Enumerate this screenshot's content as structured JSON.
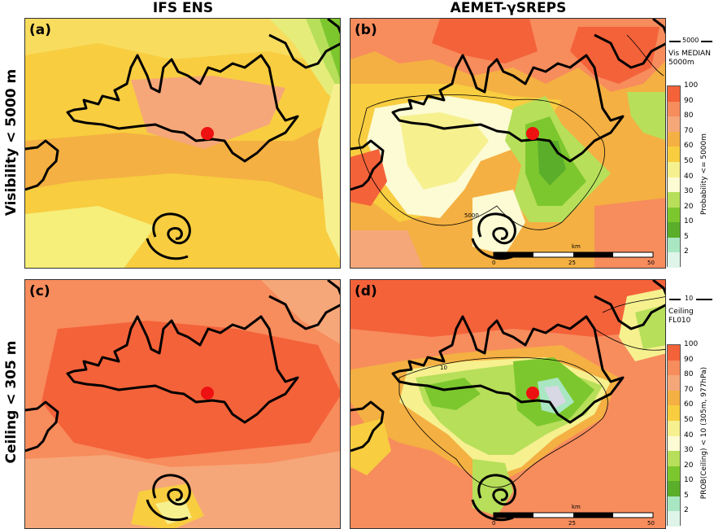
{
  "columns": [
    "IFS ENS",
    "AEMET-γSREPS"
  ],
  "rows": [
    "Visibility < 5000 m",
    "Ceiling < 305 m"
  ],
  "panels": [
    {
      "label": "(a)"
    },
    {
      "label": "(b)"
    },
    {
      "label": "(c)"
    },
    {
      "label": "(d)"
    }
  ],
  "scalebar": {
    "unit": "km",
    "ticks": [
      "0",
      "25",
      "50"
    ]
  },
  "contour_labels": {
    "vis": "5000",
    "ceil": "10"
  },
  "colorbar": {
    "ticks": [
      "100",
      "90",
      "80",
      "70",
      "60",
      "50",
      "40",
      "30",
      "20",
      "10",
      "5",
      "2"
    ],
    "colors": [
      "#f4623a",
      "#f78c5d",
      "#f6a779",
      "#f4b042",
      "#f8cd40",
      "#f6f08f",
      "#fcfbd3",
      "#b7df5a",
      "#7dc72e",
      "#5aae2a",
      "#a9e7c2",
      "#dff5ea"
    ],
    "vis_label": "Probability <= 5000m",
    "ceil_label": "PROB(Ceiling) < 10 (305m, 977hPa)"
  },
  "legend_vis": {
    "value": "5000",
    "line1": "Vis MEDIAN",
    "line2": "5000m"
  },
  "legend_ceil": {
    "value": "10",
    "line1": "Ceiling",
    "line2": "FL010"
  }
}
